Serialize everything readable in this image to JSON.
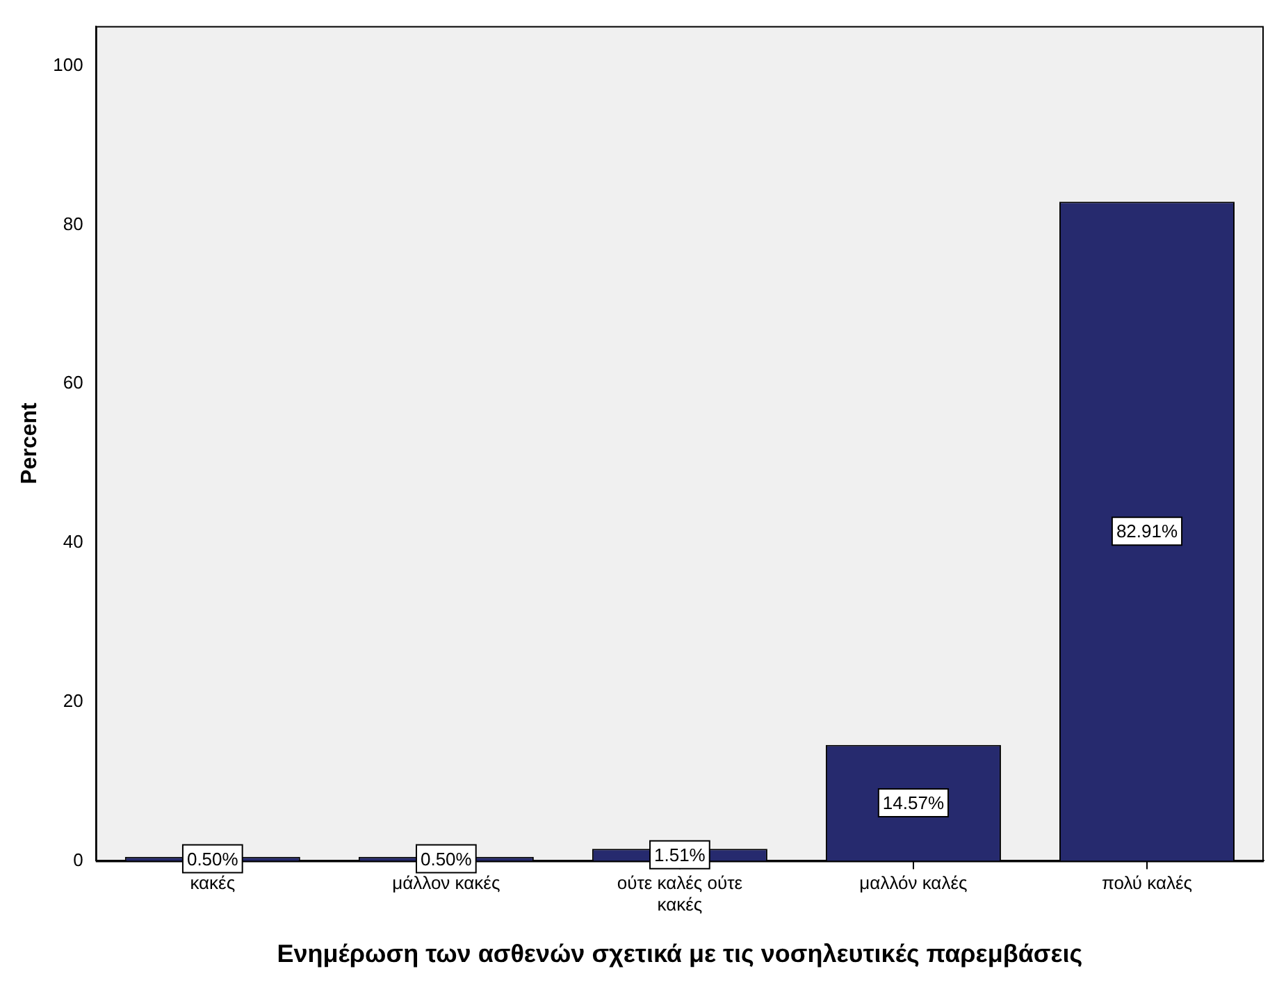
{
  "chart_data": {
    "type": "bar",
    "xlabel": "Ενημέρωση των ασθενών σχετικά με τις νοσηλευτικές παρεμβάσεις",
    "ylabel": "Percent",
    "categories": [
      "κακές",
      "μάλλον κακές",
      "ούτε καλές ούτε κακές",
      "μαλλόν καλές",
      "πολύ καλές"
    ],
    "values": [
      0.5,
      0.5,
      1.51,
      14.57,
      82.91
    ],
    "value_labels": [
      "0.50%",
      "0.50%",
      "1.51%",
      "14.57%",
      "82.91%"
    ],
    "color": "#262a6e",
    "ylim": [
      0,
      105
    ],
    "yticks": [
      0,
      20,
      40,
      60,
      80,
      100
    ],
    "grid": false,
    "legend": false
  }
}
